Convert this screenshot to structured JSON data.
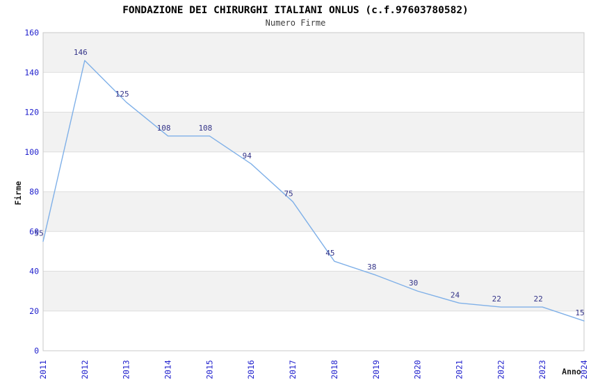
{
  "header": {
    "title": "FONDAZIONE DEI CHIRURGHI ITALIANI ONLUS (c.f.97603780582)",
    "subtitle": "Numero Firme"
  },
  "chart_data": {
    "type": "line",
    "title": "FONDAZIONE DEI CHIRURGHI ITALIANI ONLUS (c.f.97603780582)",
    "subtitle": "Numero Firme",
    "xlabel": "Anno",
    "ylabel": "Firme",
    "categories": [
      "2011",
      "2012",
      "2013",
      "2014",
      "2015",
      "2016",
      "2017",
      "2018",
      "2019",
      "2020",
      "2021",
      "2022",
      "2023",
      "2024"
    ],
    "values": [
      55,
      146,
      125,
      108,
      108,
      94,
      75,
      45,
      38,
      30,
      24,
      22,
      22,
      15
    ],
    "ylim": [
      0,
      160
    ],
    "ytick_step": 20,
    "yticks": [
      0,
      20,
      40,
      60,
      80,
      100,
      120,
      140,
      160
    ],
    "grid": "horizontal-bands-alternating",
    "legend": "none",
    "point_labels_visible": true,
    "colors": {
      "line": "#7fb0e8",
      "data_labels": "#333388",
      "tick_labels": "#2121cd",
      "band": "#f2f2f2",
      "gridline": "#dddddd",
      "plot_border": "#c9c9c9",
      "title": "#000000",
      "subtitle": "#3d3d3d",
      "axis_labels": "#1a1a1a",
      "background": "#ffffff"
    }
  }
}
